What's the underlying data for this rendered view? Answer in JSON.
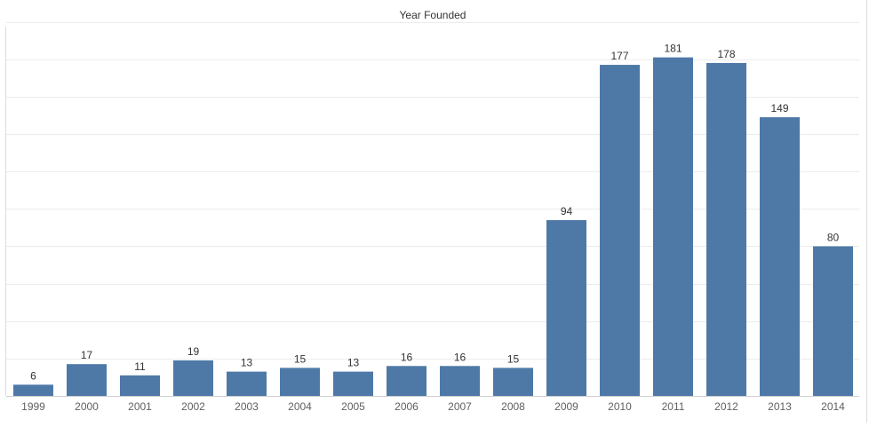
{
  "chart_data": {
    "type": "bar",
    "title": "Year Founded",
    "categories": [
      "1999",
      "2000",
      "2001",
      "2002",
      "2003",
      "2004",
      "2005",
      "2006",
      "2007",
      "2008",
      "2009",
      "2010",
      "2011",
      "2012",
      "2013",
      "2014"
    ],
    "values": [
      6,
      17,
      11,
      19,
      13,
      15,
      13,
      16,
      16,
      15,
      94,
      177,
      181,
      178,
      149,
      80
    ],
    "xlabel": "",
    "ylabel": "",
    "ylim": [
      0,
      200
    ],
    "grid": true,
    "legend": "none",
    "colors": {
      "bar": "#4e79a7",
      "gridline": "#ececec",
      "divider": "#dcdcdc",
      "axis_line": "#d0d0d0",
      "tick_label": "#606060",
      "data_label": "#333333",
      "title": "#333333"
    }
  }
}
